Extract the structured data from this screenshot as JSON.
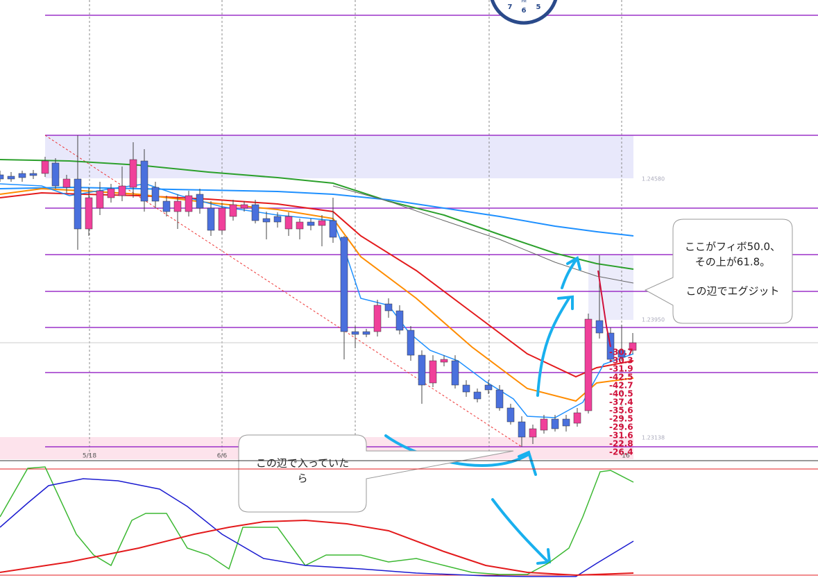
{
  "axis_labels": [
    "5/18",
    "6/6",
    "16"
  ],
  "price_labels": [
    "1.24580",
    "1.23950",
    "1.23138"
  ],
  "fib_labels": [
    "-30.7",
    "-30.3",
    "-31.9",
    "-42.5",
    "-42.7",
    "-40.5",
    "-37.4",
    "-35.6",
    "-29.5",
    "-29.6",
    "-31.6",
    "-22.8",
    "-26.4"
  ],
  "exit_note": {
    "lines": [
      "ここがフィボ50.0、",
      "その上が61.8。",
      "この辺でエグジット"
    ]
  },
  "entry_note": {
    "lines": [
      "この辺で入っていた",
      "ら"
    ]
  },
  "clock": {
    "numbers": [
      "7",
      "6",
      "5"
    ],
    "label": "PM"
  }
}
